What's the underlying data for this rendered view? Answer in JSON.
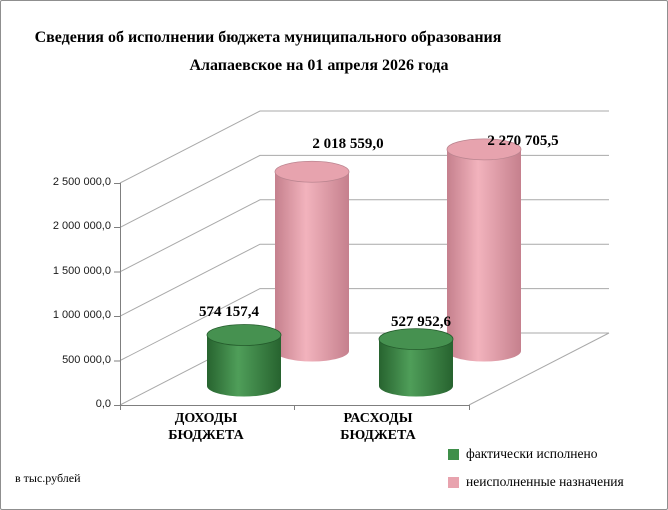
{
  "title": {
    "line1": "Сведения об исполнении бюджета муниципального образования",
    "line2": "Алапаевское на 01 апреля 2026 года"
  },
  "footnote": "в тыс.рублей",
  "chart_data": {
    "type": "bar",
    "subtype": "3d-cylinder",
    "title": "Сведения об исполнении бюджета муниципального образования Алапаевское на 01 апреля 2026 года",
    "categories": [
      "ДОХОДЫ БЮДЖЕТА",
      "РАСХОДЫ БЮДЖЕТА"
    ],
    "category_labels": [
      [
        "ДОХОДЫ",
        "БЮДЖЕТА"
      ],
      [
        "РАСХОДЫ",
        "БЮДЖЕТА"
      ]
    ],
    "series": [
      {
        "name": "фактически исполнено",
        "values": [
          574157.4,
          527952.6
        ],
        "labels": [
          "574 157,4",
          "527 952,6"
        ],
        "color": "#3f8f4a",
        "color_light": "#4f9e59",
        "color_dark": "#27632f",
        "top_fill": "#469150",
        "top_stroke": "#245c2c"
      },
      {
        "name": "неисполненные назначения",
        "values": [
          2018559.0,
          2270705.5
        ],
        "labels": [
          "2 018 559,0",
          "2 270 705,5"
        ],
        "color": "#e8a3ae",
        "color_light": "#f2b3bd",
        "color_dark": "#c5808d",
        "top_fill": "#e7a3ae",
        "top_stroke": "#bb8590"
      }
    ],
    "yticks": [
      "0,0",
      "500 000,0",
      "1 000 000,0",
      "1 500 000,0",
      "2 000 000,0",
      "2 500 000,0"
    ],
    "ylim": [
      0,
      2500000
    ],
    "ytick_step": 500000,
    "unit_note": "в тыс.рублей",
    "grid": true,
    "legend_position": "bottom-right",
    "gridline_color": "#a9a9a9",
    "axis_color": "#7f7f7f"
  }
}
